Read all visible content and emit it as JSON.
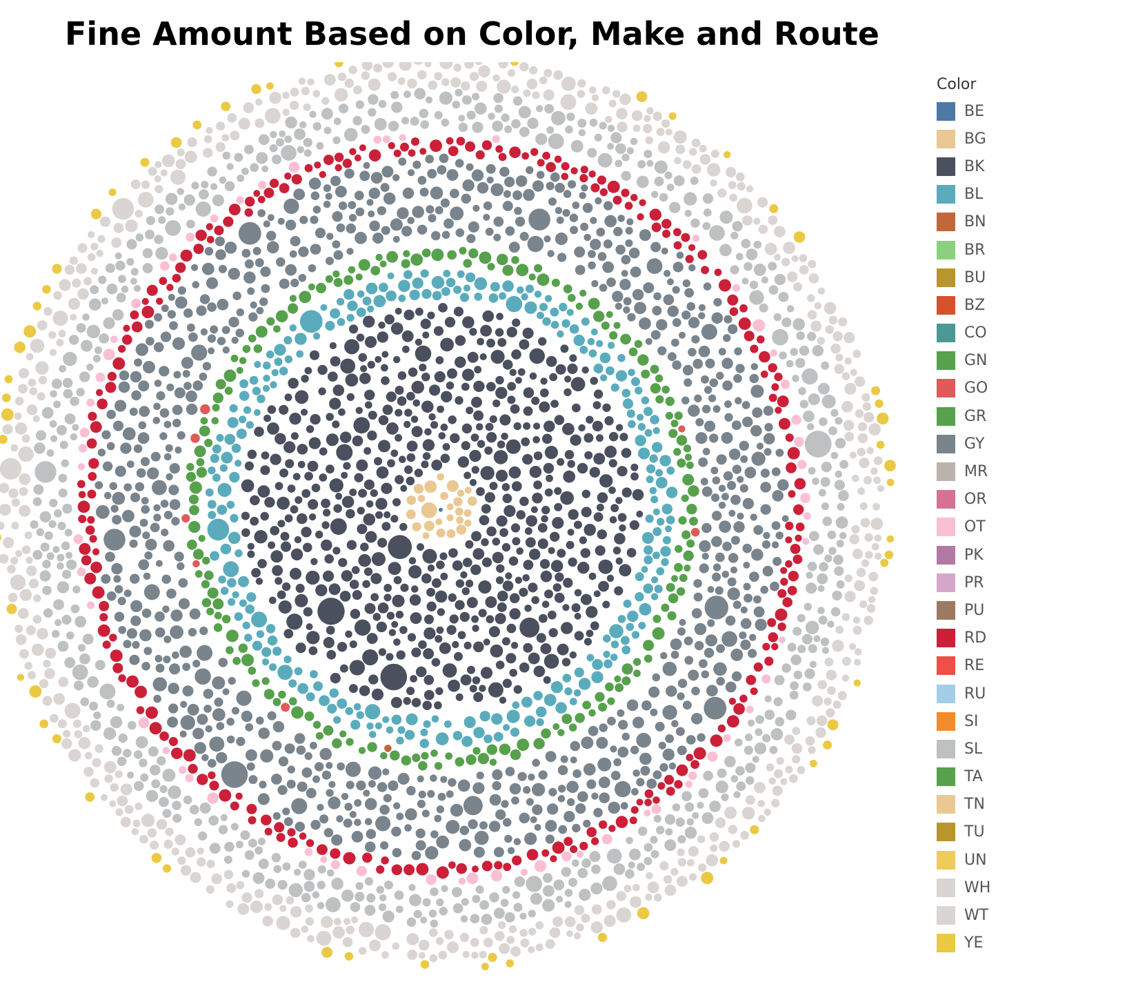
{
  "title": "Fine Amount Based on Color, Make and Route",
  "chart_data": {
    "type": "packed-bubble",
    "title": "Fine Amount Based on Color, Make and Route",
    "size_measure": "Fine Amount",
    "color_dimension": "Color",
    "legend": {
      "title": "Color",
      "placement": "right",
      "items": [
        {
          "label": "BE",
          "color": "#4e79a7"
        },
        {
          "label": "BG",
          "color": "#e9c893"
        },
        {
          "label": "BK",
          "color": "#4a505d"
        },
        {
          "label": "BL",
          "color": "#5aacbd"
        },
        {
          "label": "BN",
          "color": "#c2673c"
        },
        {
          "label": "BR",
          "color": "#8ccf7e"
        },
        {
          "label": "BU",
          "color": "#b9962d"
        },
        {
          "label": "BZ",
          "color": "#d4532a"
        },
        {
          "label": "CO",
          "color": "#4b9894"
        },
        {
          "label": "GN",
          "color": "#57a14d"
        },
        {
          "label": "GO",
          "color": "#e05a5a"
        },
        {
          "label": "GR",
          "color": "#57a14d"
        },
        {
          "label": "GY",
          "color": "#7a848c"
        },
        {
          "label": "MR",
          "color": "#bbb2ac"
        },
        {
          "label": "OR",
          "color": "#d77194"
        },
        {
          "label": "OT",
          "color": "#fbbfd3"
        },
        {
          "label": "PK",
          "color": "#b279a2"
        },
        {
          "label": "PR",
          "color": "#d5a6c9"
        },
        {
          "label": "PU",
          "color": "#9c7a62"
        },
        {
          "label": "RD",
          "color": "#cc2039"
        },
        {
          "label": "RE",
          "color": "#ec5047"
        },
        {
          "label": "RU",
          "color": "#a3cde9"
        },
        {
          "label": "SI",
          "color": "#f08c2e"
        },
        {
          "label": "SL",
          "color": "#bec0c1"
        },
        {
          "label": "TA",
          "color": "#57a14d"
        },
        {
          "label": "TN",
          "color": "#e9c893"
        },
        {
          "label": "TU",
          "color": "#b9962d"
        },
        {
          "label": "UN",
          "color": "#eecb5a"
        },
        {
          "label": "WH",
          "color": "#dad5d2"
        },
        {
          "label": "WT",
          "color": "#dad5d2"
        },
        {
          "label": "YE",
          "color": "#ebc944"
        }
      ]
    },
    "rings": [
      {
        "color": "BE",
        "count": 1
      },
      {
        "color": "BG",
        "count": 45
      },
      {
        "color": "BK",
        "count": 1100
      },
      {
        "color": "BL",
        "count": 420
      },
      {
        "color": "GR",
        "count": 190
      },
      {
        "color": "BN",
        "count": 30
      },
      {
        "color": "GO",
        "count": 25
      },
      {
        "color": "GY",
        "count": 1250
      },
      {
        "color": "RD",
        "count": 330
      },
      {
        "color": "OT",
        "count": 60
      },
      {
        "color": "SL",
        "count": 1050
      },
      {
        "color": "WH",
        "count": 1500
      },
      {
        "color": "YE",
        "count": 60
      }
    ]
  }
}
